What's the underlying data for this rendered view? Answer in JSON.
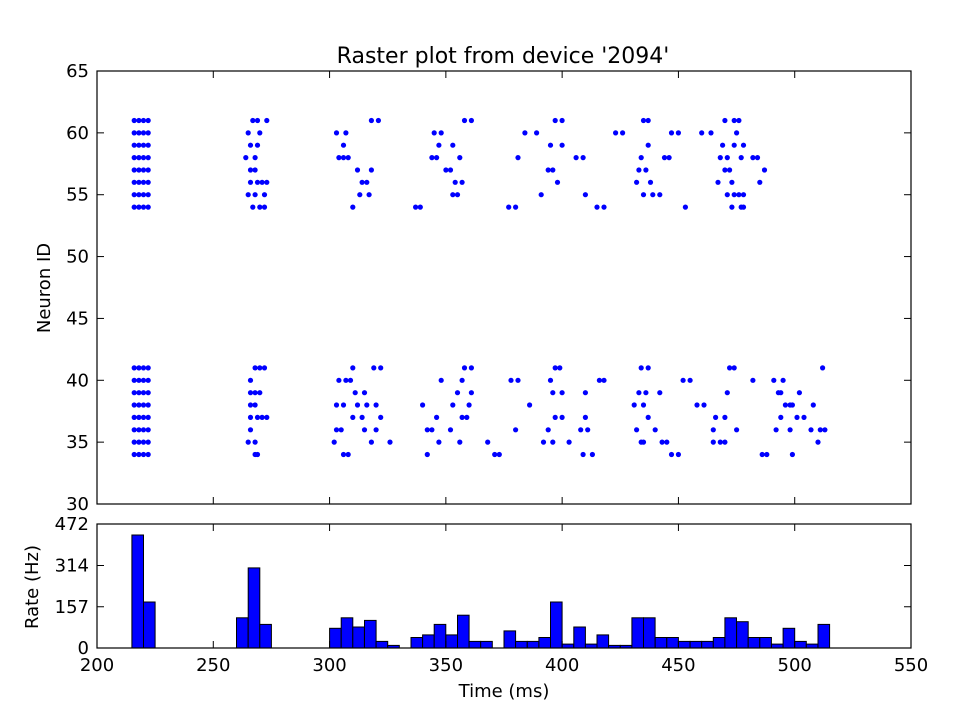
{
  "chart_data": [
    {
      "type": "scatter",
      "title": "Raster plot from device '2094'",
      "xlabel": "",
      "ylabel": "Neuron ID",
      "xlim": [
        200,
        550
      ],
      "ylim": [
        30,
        65
      ],
      "xticks": [],
      "yticks": [
        30,
        35,
        40,
        45,
        50,
        55,
        60,
        65
      ],
      "grid": false,
      "marker_color": "#0000ff",
      "points": [
        [
          216,
          34
        ],
        [
          216,
          35
        ],
        [
          216,
          36
        ],
        [
          216,
          37
        ],
        [
          216,
          38
        ],
        [
          216,
          39
        ],
        [
          216,
          40
        ],
        [
          216,
          41
        ],
        [
          218,
          34
        ],
        [
          218,
          35
        ],
        [
          218,
          36
        ],
        [
          218,
          37
        ],
        [
          218,
          38
        ],
        [
          218,
          39
        ],
        [
          218,
          40
        ],
        [
          218,
          41
        ],
        [
          220,
          34
        ],
        [
          220,
          35
        ],
        [
          220,
          36
        ],
        [
          220,
          37
        ],
        [
          220,
          38
        ],
        [
          220,
          39
        ],
        [
          220,
          40
        ],
        [
          220,
          41
        ],
        [
          222,
          34
        ],
        [
          222,
          35
        ],
        [
          222,
          36
        ],
        [
          222,
          37
        ],
        [
          222,
          38
        ],
        [
          222,
          39
        ],
        [
          222,
          40
        ],
        [
          222,
          41
        ],
        [
          216,
          54
        ],
        [
          216,
          55
        ],
        [
          216,
          56
        ],
        [
          216,
          57
        ],
        [
          216,
          58
        ],
        [
          216,
          59
        ],
        [
          216,
          60
        ],
        [
          216,
          61
        ],
        [
          218,
          54
        ],
        [
          218,
          55
        ],
        [
          218,
          56
        ],
        [
          218,
          57
        ],
        [
          218,
          58
        ],
        [
          218,
          59
        ],
        [
          218,
          60
        ],
        [
          218,
          61
        ],
        [
          220,
          54
        ],
        [
          220,
          55
        ],
        [
          220,
          56
        ],
        [
          220,
          57
        ],
        [
          220,
          58
        ],
        [
          220,
          59
        ],
        [
          220,
          60
        ],
        [
          220,
          61
        ],
        [
          222,
          54
        ],
        [
          222,
          55
        ],
        [
          222,
          56
        ],
        [
          222,
          57
        ],
        [
          222,
          58
        ],
        [
          222,
          59
        ],
        [
          222,
          60
        ],
        [
          222,
          61
        ],
        [
          265,
          35
        ],
        [
          266,
          36
        ],
        [
          266,
          37
        ],
        [
          266,
          38
        ],
        [
          266,
          39
        ],
        [
          266,
          40
        ],
        [
          268,
          34
        ],
        [
          268,
          35
        ],
        [
          268,
          38
        ],
        [
          268,
          39
        ],
        [
          268,
          41
        ],
        [
          269,
          34
        ],
        [
          269,
          37
        ],
        [
          270,
          39
        ],
        [
          270,
          41
        ],
        [
          271,
          37
        ],
        [
          272,
          41
        ],
        [
          273,
          37
        ],
        [
          264,
          58
        ],
        [
          265,
          55
        ],
        [
          265,
          60
        ],
        [
          266,
          56
        ],
        [
          266,
          57
        ],
        [
          266,
          59
        ],
        [
          267,
          54
        ],
        [
          267,
          61
        ],
        [
          268,
          55
        ],
        [
          268,
          57
        ],
        [
          268,
          58
        ],
        [
          269,
          56
        ],
        [
          269,
          59
        ],
        [
          269,
          61
        ],
        [
          270,
          54
        ],
        [
          270,
          60
        ],
        [
          271,
          56
        ],
        [
          272,
          54
        ],
        [
          272,
          55
        ],
        [
          273,
          56
        ],
        [
          273,
          61
        ],
        [
          302,
          35
        ],
        [
          303,
          36
        ],
        [
          303,
          38
        ],
        [
          304,
          40
        ],
        [
          305,
          36
        ],
        [
          306,
          34
        ],
        [
          306,
          38
        ],
        [
          307,
          40
        ],
        [
          308,
          34
        ],
        [
          309,
          40
        ],
        [
          310,
          37
        ],
        [
          310,
          41
        ],
        [
          311,
          39
        ],
        [
          312,
          38
        ],
        [
          314,
          37
        ],
        [
          315,
          36
        ],
        [
          315,
          39
        ],
        [
          316,
          38
        ],
        [
          318,
          35
        ],
        [
          319,
          41
        ],
        [
          320,
          38
        ],
        [
          320,
          36
        ],
        [
          322,
          37
        ],
        [
          322,
          41
        ],
        [
          326,
          35
        ],
        [
          303,
          60
        ],
        [
          304,
          58
        ],
        [
          306,
          58
        ],
        [
          306,
          59
        ],
        [
          307,
          60
        ],
        [
          308,
          58
        ],
        [
          310,
          54
        ],
        [
          312,
          57
        ],
        [
          313,
          55
        ],
        [
          314,
          56
        ],
        [
          316,
          56
        ],
        [
          317,
          55
        ],
        [
          318,
          57
        ],
        [
          318,
          61
        ],
        [
          321,
          61
        ],
        [
          337,
          54
        ],
        [
          339,
          54
        ],
        [
          340,
          38
        ],
        [
          342,
          34
        ],
        [
          342,
          36
        ],
        [
          344,
          36
        ],
        [
          346,
          37
        ],
        [
          347,
          35
        ],
        [
          348,
          40
        ],
        [
          352,
          36
        ],
        [
          353,
          38
        ],
        [
          355,
          39
        ],
        [
          356,
          35
        ],
        [
          357,
          37
        ],
        [
          357,
          40
        ],
        [
          358,
          41
        ],
        [
          359,
          37
        ],
        [
          360,
          38
        ],
        [
          361,
          39
        ],
        [
          361,
          41
        ],
        [
          344,
          58
        ],
        [
          345,
          60
        ],
        [
          346,
          58
        ],
        [
          347,
          59
        ],
        [
          348,
          60
        ],
        [
          350,
          57
        ],
        [
          352,
          57
        ],
        [
          353,
          55
        ],
        [
          353,
          59
        ],
        [
          354,
          56
        ],
        [
          355,
          55
        ],
        [
          356,
          58
        ],
        [
          357,
          56
        ],
        [
          358,
          61
        ],
        [
          361,
          61
        ],
        [
          368,
          35
        ],
        [
          371,
          34
        ],
        [
          373,
          34
        ],
        [
          378,
          40
        ],
        [
          380,
          36
        ],
        [
          381,
          40
        ],
        [
          386,
          38
        ],
        [
          392,
          35
        ],
        [
          394,
          36
        ],
        [
          395,
          40
        ],
        [
          396,
          35
        ],
        [
          396,
          39
        ],
        [
          397,
          41
        ],
        [
          397,
          37
        ],
        [
          399,
          41
        ],
        [
          400,
          39
        ],
        [
          400,
          37
        ],
        [
          403,
          35
        ],
        [
          408,
          36
        ],
        [
          409,
          34
        ],
        [
          410,
          39
        ],
        [
          410,
          37
        ],
        [
          411,
          36
        ],
        [
          413,
          34
        ],
        [
          416,
          40
        ],
        [
          418,
          40
        ],
        [
          377,
          54
        ],
        [
          380,
          54
        ],
        [
          381,
          58
        ],
        [
          384,
          60
        ],
        [
          389,
          60
        ],
        [
          391,
          55
        ],
        [
          394,
          57
        ],
        [
          395,
          59
        ],
        [
          396,
          57
        ],
        [
          397,
          61
        ],
        [
          398,
          56
        ],
        [
          400,
          61
        ],
        [
          400,
          59
        ],
        [
          406,
          58
        ],
        [
          409,
          58
        ],
        [
          410,
          55
        ],
        [
          415,
          54
        ],
        [
          418,
          54
        ],
        [
          423,
          60
        ],
        [
          426,
          60
        ],
        [
          431,
          38
        ],
        [
          432,
          36
        ],
        [
          433,
          39
        ],
        [
          434,
          35
        ],
        [
          434,
          41
        ],
        [
          435,
          35
        ],
        [
          435,
          38
        ],
        [
          436,
          39
        ],
        [
          437,
          37
        ],
        [
          437,
          41
        ],
        [
          440,
          36
        ],
        [
          442,
          39
        ],
        [
          443,
          35
        ],
        [
          445,
          35
        ],
        [
          447,
          34
        ],
        [
          450,
          34
        ],
        [
          452,
          40
        ],
        [
          455,
          40
        ],
        [
          458,
          38
        ],
        [
          461,
          38
        ],
        [
          465,
          36
        ],
        [
          465,
          35
        ],
        [
          466,
          37
        ],
        [
          468,
          35
        ],
        [
          470,
          35
        ],
        [
          470,
          37
        ],
        [
          471,
          39
        ],
        [
          472,
          41
        ],
        [
          474,
          41
        ],
        [
          475,
          36
        ],
        [
          432,
          56
        ],
        [
          433,
          57
        ],
        [
          434,
          58
        ],
        [
          435,
          55
        ],
        [
          435,
          61
        ],
        [
          436,
          57
        ],
        [
          437,
          59
        ],
        [
          437,
          61
        ],
        [
          438,
          56
        ],
        [
          439,
          55
        ],
        [
          442,
          55
        ],
        [
          444,
          58
        ],
        [
          446,
          58
        ],
        [
          447,
          60
        ],
        [
          450,
          60
        ],
        [
          453,
          54
        ],
        [
          460,
          60
        ],
        [
          464,
          60
        ],
        [
          467,
          56
        ],
        [
          468,
          58
        ],
        [
          469,
          59
        ],
        [
          470,
          57
        ],
        [
          470,
          61
        ],
        [
          471,
          55
        ],
        [
          471,
          58
        ],
        [
          472,
          57
        ],
        [
          473,
          54
        ],
        [
          473,
          56
        ],
        [
          474,
          55
        ],
        [
          474,
          59
        ],
        [
          474,
          61
        ],
        [
          475,
          60
        ],
        [
          476,
          55
        ],
        [
          476,
          61
        ],
        [
          477,
          54
        ],
        [
          477,
          58
        ],
        [
          478,
          54
        ],
        [
          478,
          55
        ],
        [
          478,
          59
        ],
        [
          482,
          58
        ],
        [
          484,
          58
        ],
        [
          485,
          56
        ],
        [
          487,
          57
        ],
        [
          482,
          40
        ],
        [
          486,
          34
        ],
        [
          488,
          34
        ],
        [
          491,
          40
        ],
        [
          492,
          36
        ],
        [
          493,
          39
        ],
        [
          494,
          39
        ],
        [
          494,
          37
        ],
        [
          495,
          40
        ],
        [
          496,
          38
        ],
        [
          498,
          38
        ],
        [
          498,
          36
        ],
        [
          499,
          38
        ],
        [
          499,
          34
        ],
        [
          501,
          37
        ],
        [
          502,
          39
        ],
        [
          504,
          37
        ],
        [
          507,
          36
        ],
        [
          508,
          38
        ],
        [
          510,
          35
        ],
        [
          511,
          36
        ],
        [
          512,
          41
        ],
        [
          513,
          36
        ]
      ]
    },
    {
      "type": "bar",
      "title": "",
      "xlabel": "Time (ms)",
      "ylabel": "Rate (Hz)",
      "xlim": [
        200,
        550
      ],
      "ylim": [
        0,
        472
      ],
      "xticks": [
        200,
        250,
        300,
        350,
        400,
        450,
        500,
        550
      ],
      "yticks": [
        0,
        157,
        314,
        472
      ],
      "bar_color": "#0000ff",
      "bin_width": 5,
      "bin_starts": [
        215,
        220,
        260,
        265,
        270,
        300,
        305,
        310,
        315,
        320,
        325,
        335,
        340,
        345,
        350,
        355,
        360,
        365,
        375,
        380,
        385,
        390,
        395,
        400,
        405,
        410,
        415,
        420,
        425,
        430,
        435,
        440,
        445,
        450,
        455,
        460,
        465,
        470,
        475,
        480,
        485,
        490,
        495,
        500,
        505,
        510
      ],
      "values": [
        430,
        175,
        115,
        305,
        90,
        75,
        115,
        80,
        105,
        25,
        10,
        40,
        50,
        90,
        50,
        125,
        25,
        25,
        65,
        25,
        25,
        40,
        175,
        15,
        80,
        15,
        50,
        10,
        10,
        115,
        115,
        40,
        40,
        25,
        25,
        25,
        40,
        115,
        100,
        40,
        40,
        15,
        75,
        25,
        15,
        90
      ]
    }
  ]
}
